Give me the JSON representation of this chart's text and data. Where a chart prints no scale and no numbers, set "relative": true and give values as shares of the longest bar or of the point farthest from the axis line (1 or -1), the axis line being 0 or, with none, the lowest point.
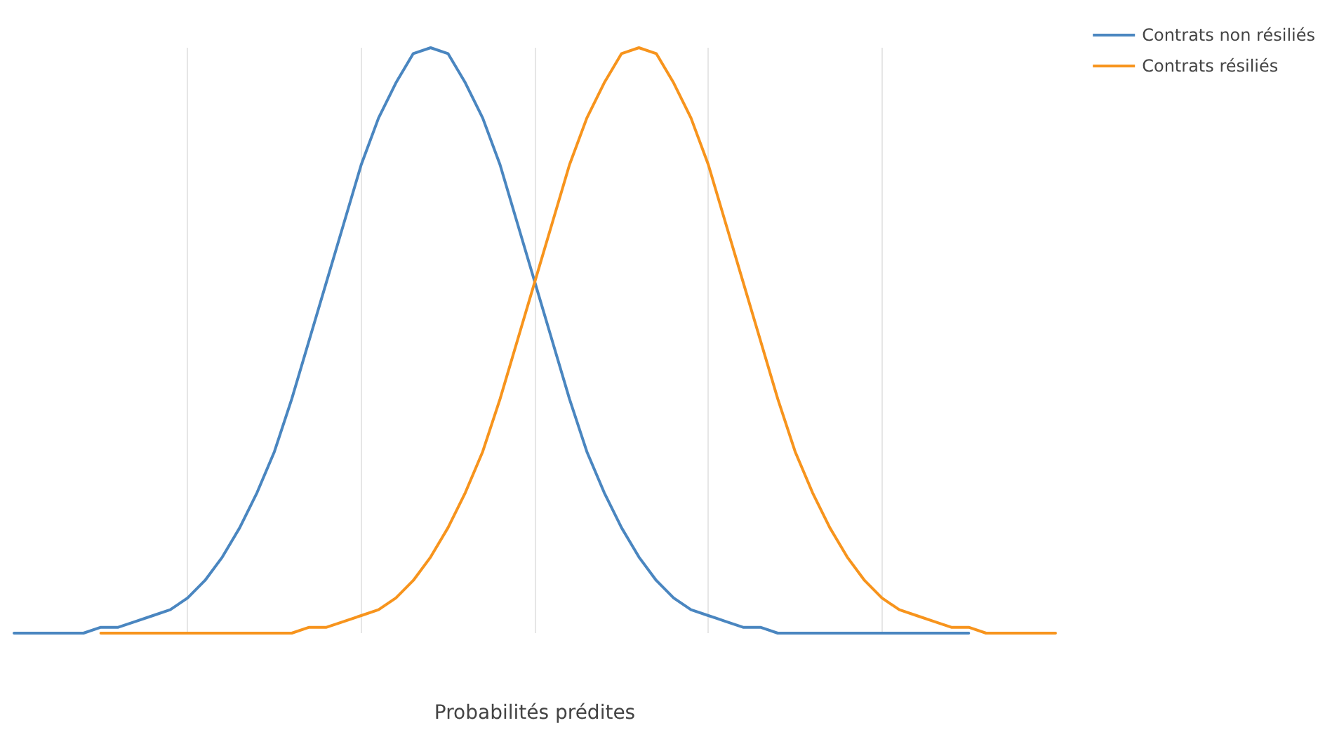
{
  "chart_data": {
    "type": "line",
    "xlabel": "Probabilités prédites",
    "relative": true,
    "grid": "x",
    "legend": "top right",
    "marker": "none",
    "categories": [
      null,
      null,
      null,
      null,
      null,
      null,
      null,
      null,
      null,
      null,
      null,
      null,
      null,
      null,
      null,
      null,
      null,
      null,
      null,
      null,
      null,
      null,
      null,
      null,
      null,
      null,
      null,
      null,
      null,
      null,
      null,
      null,
      null,
      null,
      null,
      null,
      null,
      null,
      null,
      null,
      null,
      null,
      null,
      null,
      null,
      null,
      null,
      null,
      null,
      null,
      null,
      null,
      null,
      null,
      null,
      null,
      null,
      null,
      null,
      null,
      null
    ],
    "series": [
      {
        "name": "Contrats non résiliés",
        "color": "#4a86c0",
        "values": [
          0,
          0,
          0,
          0,
          0,
          0.01,
          0.01,
          0.02,
          0.03,
          0.04,
          0.06,
          0.09,
          0.13,
          0.18,
          0.24,
          0.31,
          0.4,
          0.5,
          0.6,
          0.7,
          0.8,
          0.88,
          0.94,
          0.99,
          1,
          0.99,
          0.94,
          0.88,
          0.8,
          0.7,
          0.6,
          0.5,
          0.4,
          0.31,
          0.24,
          0.18,
          0.13,
          0.09,
          0.06,
          0.04,
          0.03,
          0.02,
          0.01,
          0.01,
          0,
          0,
          0,
          0,
          0,
          0,
          0,
          0,
          0,
          0,
          0,
          0,
          null,
          null,
          null,
          null,
          null
        ]
      },
      {
        "name": "Contrats résiliés",
        "color": "#f7941d",
        "values": [
          null,
          null,
          null,
          null,
          null,
          0,
          0,
          0,
          0,
          0,
          0,
          0,
          0,
          0,
          0,
          0,
          0,
          0.01,
          0.01,
          0.02,
          0.03,
          0.04,
          0.06,
          0.09,
          0.13,
          0.18,
          0.24,
          0.31,
          0.4,
          0.5,
          0.6,
          0.7,
          0.8,
          0.88,
          0.94,
          0.99,
          1,
          0.99,
          0.94,
          0.88,
          0.8,
          0.7,
          0.6,
          0.5,
          0.4,
          0.31,
          0.24,
          0.18,
          0.13,
          0.09,
          0.06,
          0.04,
          0.03,
          0.02,
          0.01,
          0.01,
          0,
          0,
          0,
          0,
          0
        ]
      }
    ]
  }
}
